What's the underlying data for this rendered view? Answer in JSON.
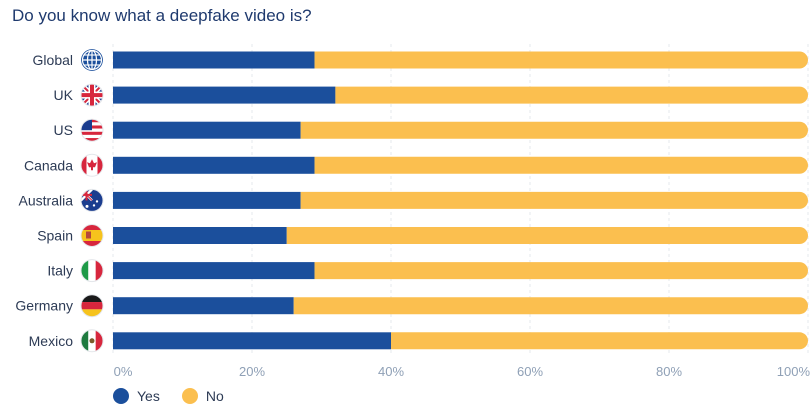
{
  "chart_data": {
    "type": "bar",
    "orientation": "horizontal",
    "stacked": true,
    "title": "Do you know what a deepfake video is?",
    "categories": [
      "Global",
      "UK",
      "US",
      "Canada",
      "Australia",
      "Spain",
      "Italy",
      "Germany",
      "Mexico"
    ],
    "series": [
      {
        "name": "Yes",
        "color": "#1b4f9c",
        "values": [
          29,
          32,
          27,
          29,
          27,
          25,
          29,
          26,
          40
        ]
      },
      {
        "name": "No",
        "color": "#fbbf4f",
        "values": [
          71,
          68,
          73,
          71,
          73,
          75,
          71,
          74,
          60
        ]
      }
    ],
    "x_ticks": [
      "0%",
      "20%",
      "40%",
      "60%",
      "80%",
      "100%"
    ],
    "xlim": [
      0,
      100
    ],
    "grid": true,
    "legend_position": "bottom-left",
    "flag_icons": [
      "globe-icon",
      "uk-flag-icon",
      "us-flag-icon",
      "canada-flag-icon",
      "australia-flag-icon",
      "spain-flag-icon",
      "italy-flag-icon",
      "germany-flag-icon",
      "mexico-flag-icon"
    ]
  }
}
